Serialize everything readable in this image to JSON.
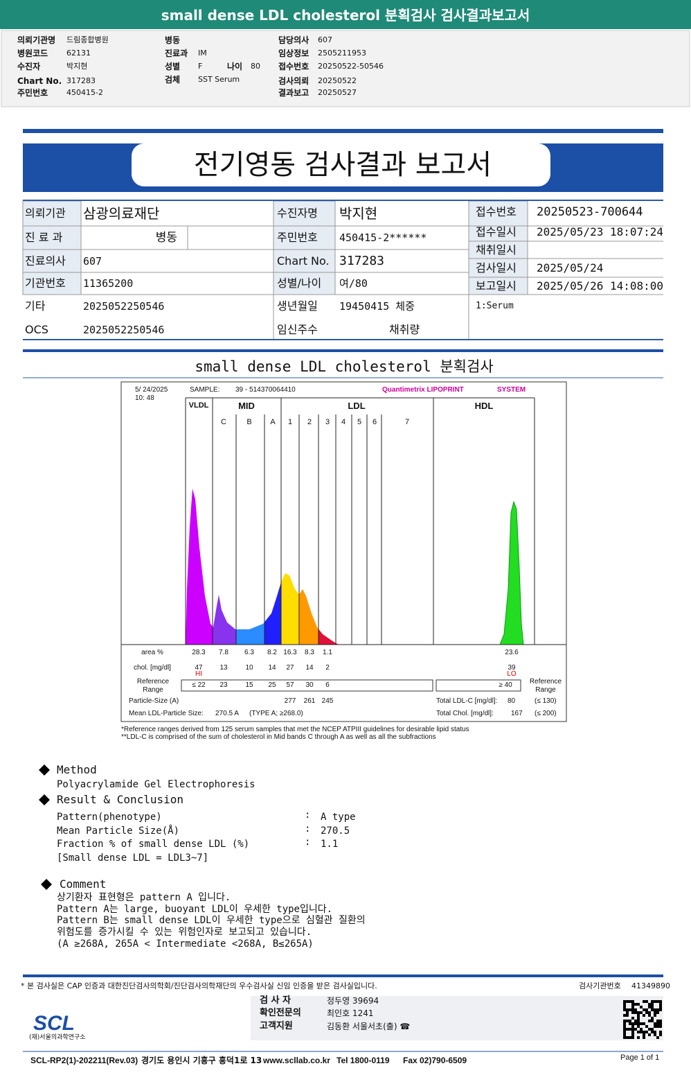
{
  "header": {
    "title": "small dense LDL cholesterol 분획검사 검사결과보고서"
  },
  "patient_info": [
    {
      "label": "의뢰기관명",
      "value": "드림종합병원"
    },
    {
      "label": "병원코드",
      "value": "62131"
    },
    {
      "label": "수진자",
      "value": "박지현"
    },
    {
      "label": "Chart No.",
      "value": "317283"
    },
    {
      "label": "주민번호",
      "value": "450415-2"
    },
    {
      "label": "병동"
    },
    {
      "label": "진료과",
      "value": "IM"
    },
    {
      "label": "성별",
      "value": "F"
    },
    {
      "label": "나이",
      "value": "80"
    },
    {
      "label": "검체",
      "value": "SST Serum"
    },
    {
      "label": "담당의사",
      "value": "607"
    },
    {
      "label": "임상정보",
      "value": "2505211953"
    },
    {
      "label": "접수번호",
      "value": "20250522-50546"
    },
    {
      "label": "검사의뢰",
      "value": "20250522"
    },
    {
      "label": "결과보고",
      "value": "20250527"
    }
  ],
  "report": {
    "title": "전기영동 검사결과 보고서",
    "fields": [
      {
        "label": "의뢰기관",
        "value": "삼광의료재단"
      },
      {
        "label": "수진자명",
        "value": "박지현"
      },
      {
        "label": "접수번호",
        "value": "20250523-700644"
      },
      {
        "label": "진 료 과",
        "value": "병동"
      },
      {
        "label": "주민번호",
        "value": "450415-2******"
      },
      {
        "label": "접수일시",
        "value": "2025/05/23 18:07:24"
      },
      {
        "label": "진료의사",
        "value": "607"
      },
      {
        "label": "Chart No.",
        "value": "317283"
      },
      {
        "label": "채취일시"
      },
      {
        "label": "기관번호",
        "value": "11365200"
      },
      {
        "label": "성별/나이",
        "value": "여/80"
      },
      {
        "label": "검사일시",
        "value": "2025/05/24"
      },
      {
        "label": "보고일시",
        "value": "2025/05/26 14:08:00"
      },
      {
        "label": "기타",
        "value": "2025052250546"
      },
      {
        "label": "생년월일",
        "value": "19450415 체중"
      },
      {
        "value": "1:Serum"
      },
      {
        "label": "OCS",
        "value": "2025052250546"
      },
      {
        "label": "임신주수"
      },
      {
        "label": "채취량"
      }
    ]
  },
  "chart": {
    "section_title": "small dense LDL cholesterol 분획검사",
    "date": "5/ 24/2025",
    "time": "10: 48",
    "sample_label": "SAMPLE:",
    "sample": "39 - 514370064410",
    "system": "Quantimetrix LIPOPRINT",
    "system_suffix": "SYSTEM",
    "bands": [
      "VLDL",
      "MID",
      "LDL",
      "HDL"
    ],
    "subbands": [
      "C",
      "B",
      "A",
      "1",
      "2",
      "3",
      "4",
      "5",
      "6",
      "7"
    ],
    "area_label": "area %",
    "area": [
      "28.3",
      "7.8",
      "6.3",
      "8.2",
      "16.3",
      "8.3",
      "1.1"
    ],
    "hdl_area": "23.6",
    "chol_label": "chol. [mg/dl]",
    "chol": [
      "47",
      "13",
      "10",
      "14",
      "27",
      "14",
      "2"
    ],
    "hdl_chol": "39",
    "hi": "HI",
    "lo": "LO",
    "ref_label": "Reference Range",
    "ref": [
      "≤ 22",
      "23",
      "15",
      "25",
      "57",
      "30",
      "6"
    ],
    "hdl_ref": "≥ 40",
    "particle_label": "Particle-Size (A)",
    "particle": [
      "277",
      "261",
      "245"
    ],
    "mean_label": "Mean LDL-Particle Size:",
    "mean": "270.5 A",
    "mean_type": "(TYPE A; ≥268.0)",
    "total_ldl_label": "Total LDL-C [mg/dl]:",
    "total_ldl": "80",
    "total_ldl_ref": "(≤ 130)",
    "total_chol_label": "Total Chol. [mg/dl]:",
    "total_chol": "167",
    "total_chol_ref": "(≤ 200)",
    "footnotes": [
      "*Reference ranges derived from 125 serum samples that met the NCEP ATPIII guidelines for desirable lipid status",
      "**LDL-C is comprised of the sum of cholesterol in Mid bands C through A as well as all the subfractions"
    ]
  },
  "method": {
    "title": "Method",
    "text": "Polyacrylamide Gel Electrophoresis"
  },
  "result": {
    "title": "Result & Conclusion",
    "separator": ":",
    "rows": [
      {
        "label": "Pattern(phenotype)",
        "value": "A type"
      },
      {
        "label": "Mean Particle Size(Å)",
        "value": "270.5"
      },
      {
        "label": "Fraction % of small dense LDL (%)",
        "value": "1.1"
      }
    ],
    "note": "[Small dense LDL = LDL3~7]"
  },
  "comment": {
    "title": "Comment",
    "lines": [
      "상기환자 표현형은 pattern A 입니다.",
      "Pattern A는 large, buoyant LDL이 우세한 type입니다.",
      "Pattern B는 small dense LDL이 우세한 type으로 심혈관 질환의",
      "위험도를 증가시킬 수 있는 위험인자로 보고되고 있습니다.",
      "(A ≥268A, 265A < Intermediate <268A, B≤265A)"
    ]
  },
  "footer": {
    "note": "* 본 검사실은 CAP 인증과 대한진단검사의학회/진단검사의학재단의 우수검사실 신임 인증을 받은 검사실입니다.",
    "lab_number_label": "검사기관번호",
    "lab_number": "41349890",
    "signers": [
      {
        "role": "검 사 자",
        "name": "정두영 39694"
      },
      {
        "role": "확인전문의",
        "name": "최인호 1241"
      },
      {
        "role": "고객지원",
        "name": "김동환 서울서초(출) ☎"
      }
    ],
    "logo": "SCL",
    "org": "(재)서울의과학연구소",
    "form": "SCL-RP2(1)-202211(Rev.03)",
    "address": "경기도 용인시 기흥구 흥덕1로 13",
    "web": "www.scllab.co.kr",
    "tel": "Tel 1800-0119",
    "fax": "Fax 02)790-6509",
    "page": "Page 1 of 1"
  }
}
